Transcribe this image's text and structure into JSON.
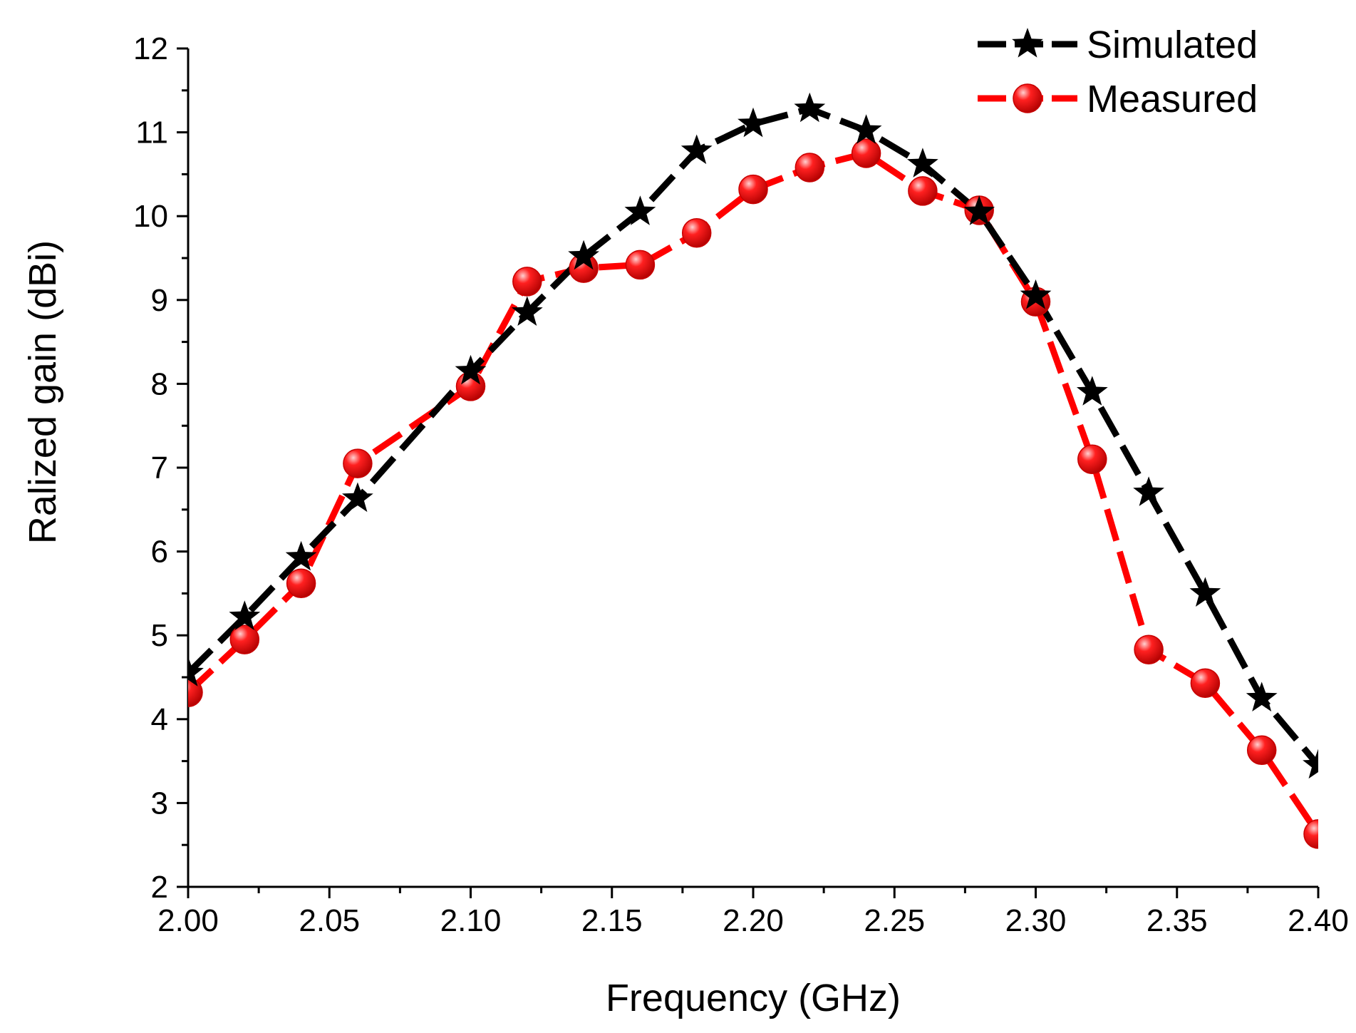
{
  "chart_data": {
    "type": "line",
    "xlabel": "Frequency (GHz)",
    "ylabel": "Ralized gain (dBi)",
    "xlim": [
      2.0,
      2.4
    ],
    "ylim": [
      2,
      12
    ],
    "x_ticks": [
      "2.00",
      "2.05",
      "2.10",
      "2.15",
      "2.20",
      "2.25",
      "2.30",
      "2.35",
      "2.40"
    ],
    "y_ticks": [
      "2",
      "3",
      "4",
      "5",
      "6",
      "7",
      "8",
      "9",
      "10",
      "11",
      "12"
    ],
    "grid": false,
    "legend_position": "top-right",
    "x": [
      2.0,
      2.02,
      2.04,
      2.06,
      2.1,
      2.12,
      2.14,
      2.16,
      2.18,
      2.2,
      2.22,
      2.24,
      2.26,
      2.28,
      2.3,
      2.32,
      2.34,
      2.36,
      2.38,
      2.4
    ],
    "series": [
      {
        "name": "Simulated",
        "color": "#000000",
        "marker": "star",
        "values": [
          4.55,
          5.22,
          5.93,
          6.63,
          8.15,
          8.85,
          9.52,
          10.05,
          10.78,
          11.1,
          11.28,
          11.02,
          10.62,
          10.05,
          9.05,
          7.9,
          6.7,
          5.5,
          4.25,
          3.45
        ]
      },
      {
        "name": "Measured",
        "color": "#ff0000",
        "marker": "circle",
        "values": [
          4.32,
          4.95,
          5.62,
          7.05,
          7.97,
          9.22,
          9.38,
          9.42,
          9.8,
          10.32,
          10.58,
          10.75,
          10.3,
          10.07,
          8.98,
          7.1,
          4.83,
          4.43,
          3.63,
          2.63
        ]
      }
    ]
  }
}
